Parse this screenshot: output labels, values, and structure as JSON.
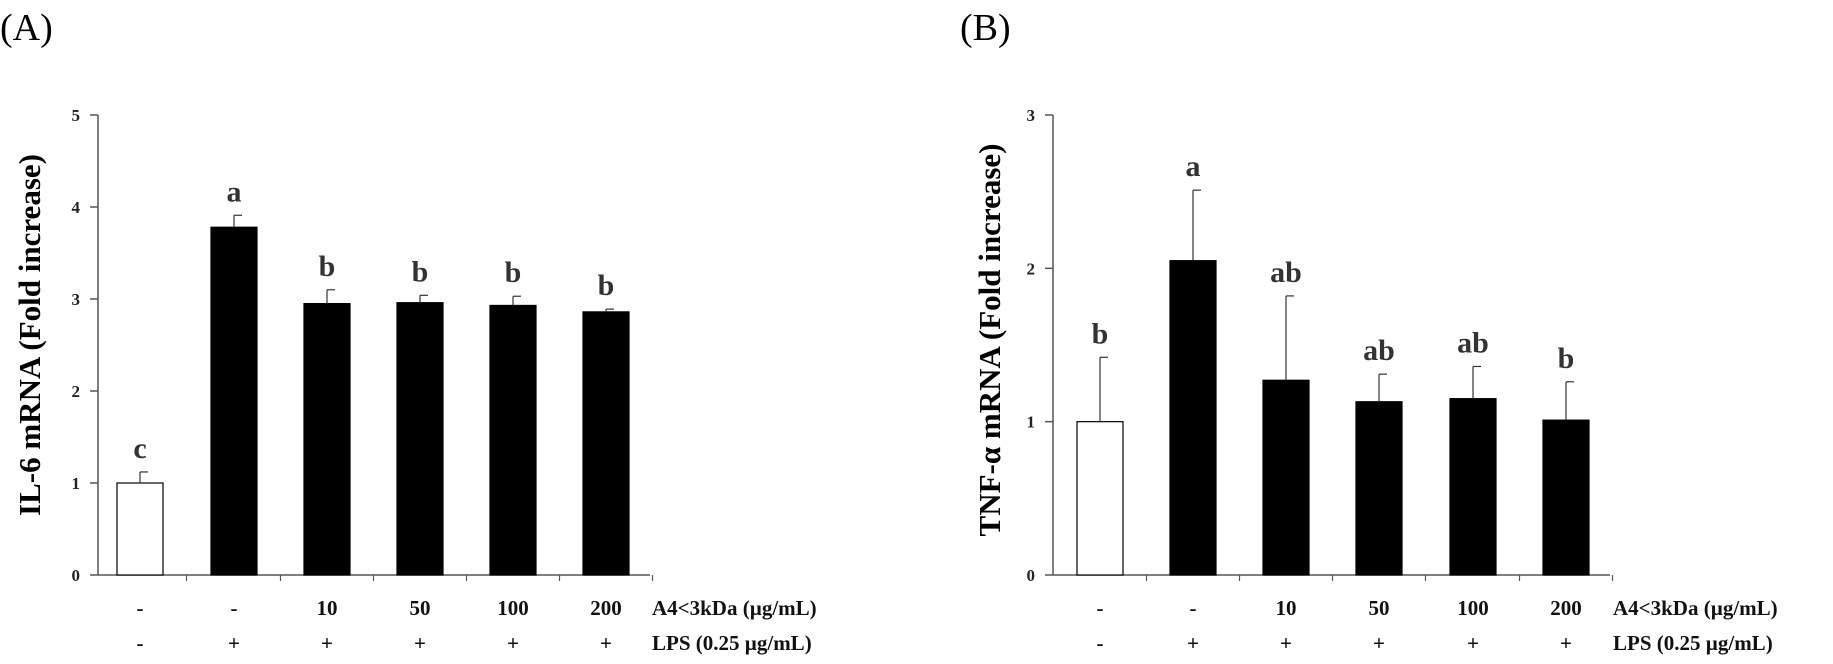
{
  "chart_data": [
    {
      "type": "bar",
      "panel_label": "(A)",
      "ylabel": "IL-6 mRNA (Fold increase)",
      "ylim": [
        0,
        5
      ],
      "yticks": [
        0,
        1,
        2,
        3,
        4,
        5
      ],
      "values": [
        1.0,
        3.78,
        2.95,
        2.96,
        2.93,
        2.86
      ],
      "errors": [
        0.12,
        0.13,
        0.15,
        0.08,
        0.1,
        0.03
      ],
      "letters": [
        "c",
        "a",
        "b",
        "b",
        "b",
        "b"
      ],
      "bar_colors": [
        "#ffffff",
        "#000000",
        "#000000",
        "#000000",
        "#000000",
        "#000000"
      ],
      "rows": [
        {
          "label": "A4<3kDa (µg/mL)",
          "values": [
            "-",
            "-",
            "10",
            "50",
            "100",
            "200"
          ]
        },
        {
          "label": "LPS (0.25 µg/mL)",
          "values": [
            "-",
            "+",
            "+",
            "+",
            "+",
            "+"
          ]
        }
      ]
    },
    {
      "type": "bar",
      "panel_label": "(B)",
      "ylabel": "TNF-α mRNA (Fold increase)",
      "ylim": [
        0,
        3
      ],
      "yticks": [
        0,
        1,
        2,
        3
      ],
      "values": [
        1.0,
        2.05,
        1.27,
        1.13,
        1.15,
        1.01
      ],
      "errors": [
        0.42,
        0.46,
        0.55,
        0.18,
        0.21,
        0.25
      ],
      "letters": [
        "b",
        "a",
        "ab",
        "ab",
        "ab",
        "b"
      ],
      "bar_colors": [
        "#ffffff",
        "#000000",
        "#000000",
        "#000000",
        "#000000",
        "#000000"
      ],
      "rows": [
        {
          "label": "A4<3kDa (µg/mL)",
          "values": [
            "-",
            "-",
            "10",
            "50",
            "100",
            "200"
          ]
        },
        {
          "label": "LPS (0.25 µg/mL)",
          "values": [
            "-",
            "+",
            "+",
            "+",
            "+",
            "+"
          ]
        }
      ]
    }
  ]
}
